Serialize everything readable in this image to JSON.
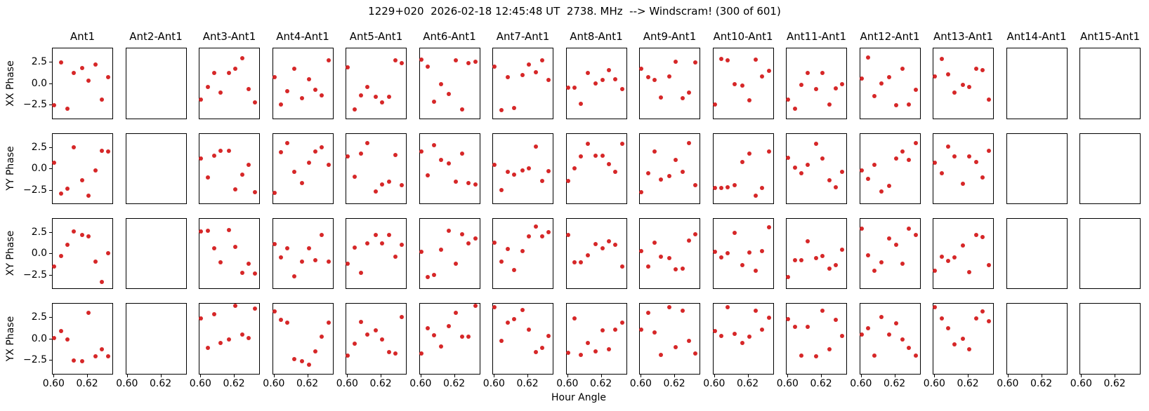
{
  "title": "1229+020  2026-02-18 12:45:48 UT  2738. MHz  --> Windscram! (300 of 601)",
  "chart_data": {
    "type": "scatter",
    "xlabel": "Hour Angle",
    "row_labels": [
      "XX Phase",
      "YY Phase",
      "XY Phase",
      "YX Phase"
    ],
    "row_keys": [
      "XX",
      "YY",
      "XY",
      "YX"
    ],
    "xlim": [
      0.599,
      0.6355
    ],
    "ylim": [
      -4.15,
      4.15
    ],
    "xticks": [
      0.6,
      0.62
    ],
    "xtick_labels": [
      "0.60",
      "0.62"
    ],
    "yticks": [
      2.5,
      0.0,
      -2.5
    ],
    "ytick_labels": [
      "2.5",
      "0.0",
      "−2.5"
    ],
    "marker_color": "#d62728",
    "frame_color": "#000000",
    "grid": false,
    "x": [
      0.6,
      0.604,
      0.608,
      0.612,
      0.617,
      0.621,
      0.625,
      0.629,
      0.633
    ],
    "columns": [
      {
        "title": "Ant1",
        "rows": {
          "XX": [
            -2.6,
            2.5,
            -3.0,
            1.2,
            1.8,
            0.3,
            2.2,
            -1.9,
            0.7
          ],
          "YY": [
            0.7,
            -3.0,
            -2.4,
            2.5,
            -1.4,
            -3.2,
            -0.2,
            2.1,
            2.0
          ],
          "XY": [
            -1.6,
            -0.3,
            1.0,
            2.6,
            2.2,
            2.0,
            -1.0,
            -3.4,
            0.0
          ],
          "YX": [
            0.1,
            0.9,
            -0.1,
            -2.6,
            -2.7,
            3.1,
            -2.1,
            -1.3,
            -2.1
          ]
        }
      },
      {
        "title": "Ant2-Ant1",
        "rows": null
      },
      {
        "title": "Ant3-Ant1",
        "rows": {
          "XX": [
            -1.9,
            -0.4,
            1.2,
            -1.1,
            1.2,
            1.7,
            3.0,
            -0.7,
            -2.3
          ],
          "YY": [
            1.2,
            -1.1,
            1.5,
            2.1,
            2.1,
            -2.5,
            -0.7,
            0.4,
            -2.8
          ],
          "XY": [
            2.6,
            2.7,
            0.6,
            -1.1,
            2.8,
            0.8,
            -2.3,
            -1.2,
            -2.4
          ],
          "YX": [
            2.4,
            -1.1,
            2.9,
            -0.5,
            -0.1,
            3.9,
            0.5,
            0.1,
            3.6
          ]
        }
      },
      {
        "title": "Ant4-Ant1",
        "rows": {
          "XX": [
            0.7,
            -2.5,
            -0.9,
            1.7,
            -1.8,
            0.5,
            -0.8,
            -1.4,
            2.7
          ],
          "YY": [
            -2.9,
            1.9,
            3.0,
            -0.4,
            -1.7,
            0.7,
            2.0,
            2.5,
            0.4
          ],
          "XY": [
            1.1,
            -0.5,
            0.6,
            -2.7,
            -1.0,
            0.6,
            -0.8,
            2.2,
            -1.0
          ],
          "YX": [
            3.2,
            2.2,
            1.9,
            -2.4,
            -2.7,
            -3.1,
            -1.5,
            0.2,
            1.9
          ]
        }
      },
      {
        "title": "Ant5-Ant1",
        "rows": {
          "XX": [
            1.9,
            -3.1,
            -1.4,
            -0.4,
            -1.6,
            -2.3,
            -1.6,
            2.7,
            2.4
          ],
          "YY": [
            1.4,
            -1.0,
            1.8,
            3.0,
            -2.7,
            -1.9,
            -1.6,
            1.6,
            -2.0
          ],
          "XY": [
            -1.2,
            0.7,
            -2.3,
            1.2,
            2.2,
            1.2,
            2.2,
            -0.4,
            1.0
          ],
          "YX": [
            -2.0,
            -0.6,
            2.0,
            0.5,
            1.0,
            -0.1,
            -1.6,
            -1.8,
            2.6
          ]
        }
      },
      {
        "title": "Ant6-Ant1",
        "rows": {
          "XX": [
            2.8,
            2.0,
            -2.2,
            -0.1,
            -1.3,
            2.7,
            -3.1,
            2.4,
            2.6
          ],
          "YY": [
            2.0,
            -0.8,
            2.8,
            1.0,
            0.6,
            -1.6,
            1.8,
            -1.7,
            -1.9
          ],
          "XY": [
            0.2,
            -2.8,
            -2.6,
            0.4,
            2.7,
            -1.2,
            2.3,
            1.2,
            1.8
          ],
          "YX": [
            -1.8,
            1.2,
            0.4,
            -0.9,
            1.5,
            3.1,
            0.2,
            0.2,
            3.9
          ]
        }
      },
      {
        "title": "Ant7-Ant1",
        "rows": {
          "XX": [
            2.0,
            -3.2,
            0.7,
            -2.9,
            1.0,
            2.2,
            1.3,
            2.7,
            0.4
          ],
          "YY": [
            0.4,
            -2.6,
            -0.4,
            -0.7,
            -0.2,
            0.0,
            2.6,
            -1.5,
            -0.3
          ],
          "XY": [
            1.3,
            -1.0,
            0.5,
            -2.0,
            0.3,
            2.0,
            3.2,
            2.0,
            2.5
          ],
          "YX": [
            3.7,
            -0.3,
            1.9,
            2.3,
            3.4,
            1.1,
            -1.6,
            -1.1,
            0.3
          ]
        }
      },
      {
        "title": "Ant8-Ant1",
        "rows": {
          "XX": [
            -0.5,
            -0.5,
            -2.4,
            1.2,
            0.0,
            0.4,
            1.6,
            0.5,
            -0.7
          ],
          "YY": [
            -1.5,
            0.0,
            1.4,
            2.9,
            1.5,
            1.5,
            0.5,
            -0.4,
            2.9
          ],
          "XY": [
            2.2,
            -1.1,
            -1.1,
            -0.2,
            1.1,
            0.6,
            1.4,
            1.0,
            -1.6
          ],
          "YX": [
            -1.7,
            2.4,
            -1.9,
            -0.5,
            -1.5,
            1.0,
            -1.3,
            1.1,
            1.9
          ]
        }
      },
      {
        "title": "Ant9-Ant1",
        "rows": {
          "XX": [
            1.7,
            0.7,
            0.4,
            -1.7,
            0.8,
            2.6,
            -1.8,
            -1.1,
            2.5
          ],
          "YY": [
            -2.8,
            -0.6,
            2.0,
            -1.3,
            -0.9,
            1.0,
            -0.4,
            3.0,
            -2.0
          ],
          "XY": [
            0.3,
            -1.6,
            1.3,
            -0.4,
            -0.6,
            -1.9,
            -1.8,
            1.5,
            2.3
          ],
          "YX": [
            1.1,
            3.1,
            0.7,
            -1.9,
            3.7,
            -1.0,
            3.3,
            -0.3,
            -1.8
          ]
        }
      },
      {
        "title": "Ant10-Ant1",
        "rows": {
          "XX": [
            -2.5,
            2.9,
            2.7,
            -0.1,
            -0.3,
            -2.0,
            2.8,
            0.8,
            1.5
          ],
          "YY": [
            -2.3,
            -2.3,
            -2.2,
            -2.0,
            0.8,
            1.8,
            -3.2,
            -2.3,
            2.0
          ],
          "XY": [
            0.2,
            -0.5,
            0.0,
            2.4,
            -1.4,
            0.1,
            -2.1,
            0.3,
            3.1
          ],
          "YX": [
            0.9,
            0.3,
            3.7,
            0.6,
            -0.5,
            0.2,
            3.3,
            1.1,
            2.5
          ]
        }
      },
      {
        "title": "Ant11-Ant1",
        "rows": {
          "XX": [
            -1.9,
            -3.0,
            -0.2,
            1.2,
            -0.7,
            1.2,
            -2.5,
            -0.6,
            -0.1
          ],
          "YY": [
            1.3,
            0.1,
            -0.6,
            0.4,
            2.9,
            1.2,
            -1.4,
            -2.2,
            -0.4
          ],
          "XY": [
            -2.8,
            -0.8,
            -0.8,
            1.4,
            -0.6,
            -0.3,
            -1.8,
            -1.4,
            0.4
          ],
          "YX": [
            2.3,
            1.4,
            -2.0,
            1.4,
            -2.1,
            3.3,
            -1.3,
            2.2,
            0.3
          ]
        }
      },
      {
        "title": "Ant12-Ant1",
        "rows": {
          "XX": [
            0.6,
            3.1,
            -1.5,
            0.0,
            0.7,
            -2.6,
            1.7,
            -2.5,
            -0.8
          ],
          "YY": [
            -0.2,
            -1.2,
            0.4,
            -2.7,
            -2.1,
            1.2,
            2.0,
            1.0,
            3.0
          ],
          "XY": [
            2.9,
            -0.2,
            -2.1,
            -1.1,
            1.8,
            1.0,
            -1.2,
            2.9,
            2.2
          ],
          "YX": [
            0.5,
            1.2,
            -2.0,
            2.6,
            0.5,
            1.8,
            -0.1,
            -1.1,
            -2.0
          ]
        }
      },
      {
        "title": "Ant13-Ant1",
        "rows": {
          "XX": [
            0.8,
            2.9,
            1.1,
            -1.1,
            -0.2,
            -0.4,
            1.7,
            1.6,
            -1.9
          ],
          "YY": [
            0.7,
            -0.6,
            2.6,
            1.4,
            -1.8,
            1.4,
            0.8,
            -1.1,
            2.1
          ],
          "XY": [
            -2.1,
            -0.4,
            -0.9,
            -0.5,
            0.9,
            -2.2,
            2.2,
            1.9,
            -1.4
          ],
          "YX": [
            3.7,
            2.4,
            1.2,
            -0.7,
            0.0,
            -1.3,
            2.4,
            3.2,
            2.1
          ]
        }
      },
      {
        "title": "Ant14-Ant1",
        "rows": null
      },
      {
        "title": "Ant15-Ant1",
        "rows": null
      }
    ]
  }
}
